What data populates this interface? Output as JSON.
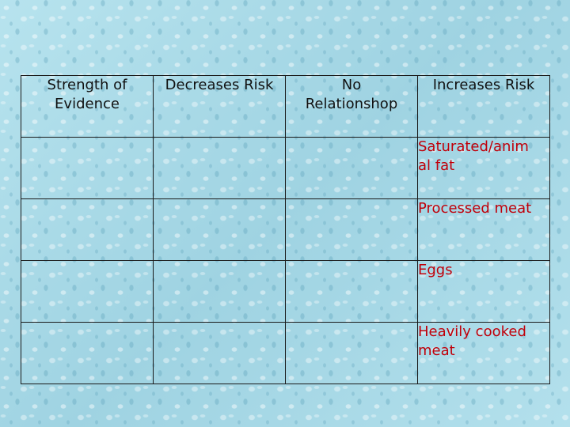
{
  "table": {
    "headers": [
      [
        "Strength of",
        "Evidence"
      ],
      [
        "Decreases Risk"
      ],
      [
        "No",
        "Relationshop"
      ],
      [
        "Increases Risk"
      ]
    ],
    "rows": [
      {
        "strength": "",
        "decreases": "",
        "no_relationship": "",
        "increases": [
          "Saturated/anim",
          "al fat"
        ]
      },
      {
        "strength": "",
        "decreases": "",
        "no_relationship": "",
        "increases": [
          "Processed meat"
        ]
      },
      {
        "strength": "",
        "decreases": "",
        "no_relationship": "",
        "increases": [
          "Eggs"
        ]
      },
      {
        "strength": "",
        "decreases": "",
        "no_relationship": "",
        "increases": [
          "Heavily cooked",
          "meat"
        ]
      }
    ],
    "colors": {
      "header_text": "#111111",
      "increases_text": "#c0000a",
      "border": "#1a1a1a",
      "background": "#a9dbe8"
    }
  }
}
